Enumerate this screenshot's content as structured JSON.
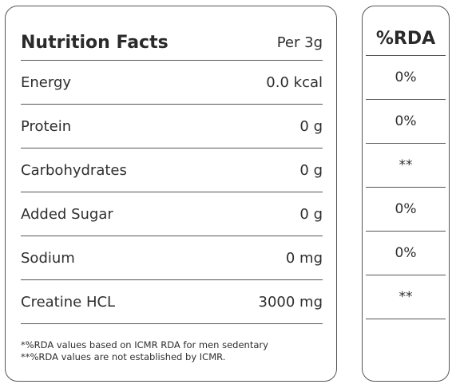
{
  "nutrition": {
    "title": "Nutrition Facts",
    "serving": "Per 3g",
    "rows": [
      {
        "label": "Energy",
        "value": "0.0 kcal"
      },
      {
        "label": "Protein",
        "value": "0 g"
      },
      {
        "label": "Carbohydrates",
        "value": "0 g"
      },
      {
        "label": "Added Sugar",
        "value": "0 g"
      },
      {
        "label": "Sodium",
        "value": "0 mg"
      },
      {
        "label": "Creatine HCL",
        "value": "3000 mg"
      }
    ],
    "footnotes": [
      "*%RDA values based on ICMR RDA for men sedentary",
      "**%RDA values are not established by ICMR."
    ]
  },
  "rda": {
    "title": "%RDA",
    "values": [
      "0%",
      "0%",
      "**",
      "0%",
      "0%",
      "**"
    ]
  }
}
